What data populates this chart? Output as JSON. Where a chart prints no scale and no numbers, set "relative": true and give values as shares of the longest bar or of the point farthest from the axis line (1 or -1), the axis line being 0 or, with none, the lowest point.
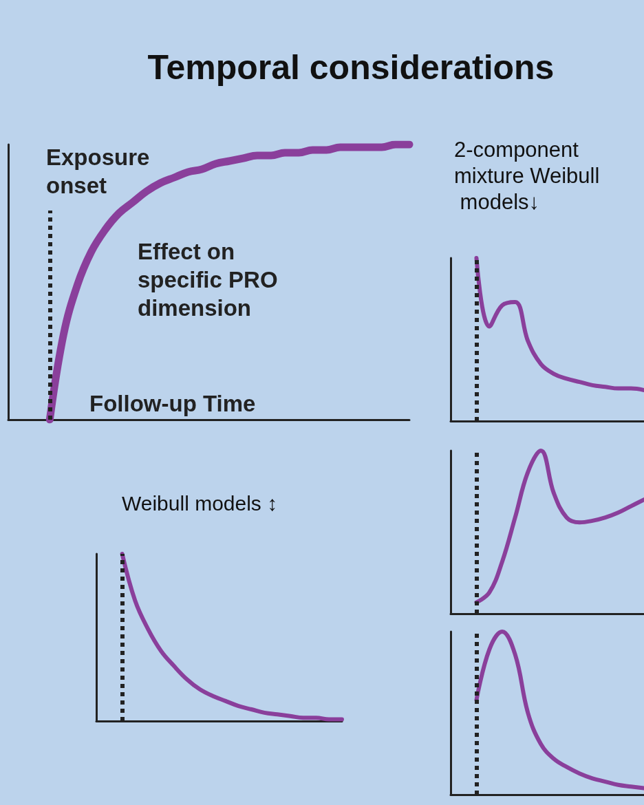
{
  "chart_data": [
    {
      "type": "line",
      "title": "Temporal considerations",
      "xlabel": "Follow-up Time",
      "annotations": [
        "Exposure onset",
        "Effect on specific PRO dimension"
      ],
      "relative": true,
      "tick_labels": false,
      "categories": [
        null,
        null,
        null,
        null,
        null,
        null,
        null,
        null,
        null,
        null,
        null,
        null,
        null,
        null,
        null,
        null,
        null,
        null,
        null,
        null,
        null,
        null,
        null,
        null,
        null,
        null,
        null,
        null,
        null,
        null
      ],
      "series": [
        {
          "color": "#8a3f9b",
          "values": [
            null,
            null,
            null,
            0,
            0.31,
            0.49,
            0.61,
            0.69,
            0.75,
            0.79,
            0.83,
            0.86,
            0.88,
            0.9,
            0.91,
            0.93,
            0.94,
            0.95,
            0.96,
            0.96,
            0.97,
            0.97,
            0.98,
            0.98,
            0.99,
            0.99,
            0.99,
            0.99,
            1,
            1
          ]
        }
      ]
    },
    {
      "type": "line",
      "title": "2-component mixture Weibull models↓",
      "relative": true,
      "tick_labels": false,
      "categories": [
        null,
        null,
        null,
        null,
        null,
        null,
        null,
        null,
        null,
        null,
        null,
        null,
        null,
        null,
        null,
        null
      ],
      "series": [
        {
          "color": "#8a3f9b",
          "values": [
            null,
            null,
            1,
            0.58,
            0.71,
            0.73,
            0.49,
            0.35,
            0.29,
            0.26,
            0.24,
            0.22,
            0.21,
            0.2,
            0.2,
            0.19
          ]
        }
      ]
    },
    {
      "type": "line",
      "relative": true,
      "tick_labels": false,
      "categories": [
        null,
        null,
        null,
        null,
        null,
        null,
        null,
        null,
        null,
        null,
        null,
        null,
        null,
        null,
        null,
        null
      ],
      "series": [
        {
          "color": "#8a3f9b",
          "values": [
            null,
            null,
            0.07,
            0.13,
            0.32,
            0.59,
            0.87,
            1,
            0.74,
            0.59,
            0.56,
            0.57,
            0.59,
            0.62,
            0.66,
            0.7
          ]
        }
      ]
    },
    {
      "type": "line",
      "relative": true,
      "tick_labels": false,
      "categories": [
        null,
        null,
        null,
        null,
        null,
        null,
        null,
        null,
        null,
        null,
        null,
        null,
        null,
        null,
        null,
        null
      ],
      "series": [
        {
          "color": "#8a3f9b",
          "values": [
            null,
            null,
            0.58,
            0.89,
            1,
            0.86,
            0.5,
            0.31,
            0.22,
            0.17,
            0.13,
            0.1,
            0.08,
            0.06,
            0.05,
            0.04
          ]
        }
      ]
    },
    {
      "type": "line",
      "title": "Weibull models ↕",
      "relative": true,
      "tick_labels": false,
      "categories": [
        null,
        null,
        null,
        null,
        null,
        null,
        null,
        null,
        null,
        null,
        null,
        null,
        null,
        null,
        null,
        null,
        null,
        null,
        null,
        null
      ],
      "series": [
        {
          "color": "#8a3f9b",
          "values": [
            null,
            null,
            1,
            0.72,
            0.55,
            0.42,
            0.33,
            0.25,
            0.19,
            0.15,
            0.12,
            0.09,
            0.07,
            0.05,
            0.04,
            0.03,
            0.02,
            0.02,
            0.01,
            0.01
          ]
        }
      ]
    }
  ]
}
